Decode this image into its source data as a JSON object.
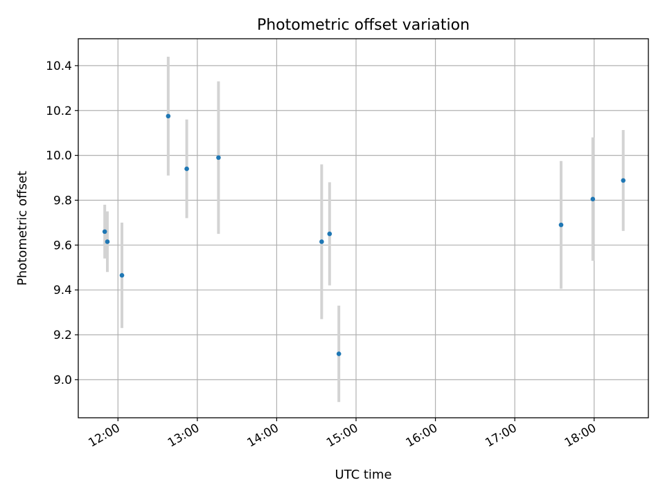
{
  "chart_data": {
    "type": "scatter",
    "title": "Photometric offset variation",
    "xlabel": "UTC time",
    "ylabel": "Photometric offset",
    "x_unit": "UTC hours (HH:MM)",
    "xlim": [
      "11:30",
      "18:41"
    ],
    "ylim": [
      8.83,
      10.52
    ],
    "x_ticks": [
      "12:00",
      "13:00",
      "14:00",
      "15:00",
      "16:00",
      "17:00",
      "18:00"
    ],
    "y_ticks": [
      "9.0",
      "9.2",
      "9.4",
      "9.6",
      "9.8",
      "10.0",
      "10.2",
      "10.4"
    ],
    "grid": true,
    "legend": "none",
    "colors": {
      "point": "#1f77b4",
      "errorbar": "#d3d3d3"
    },
    "series": [
      {
        "points": [
          {
            "x": "11:50",
            "y": 9.66,
            "yerr": 0.12
          },
          {
            "x": "11:52",
            "y": 9.615,
            "yerr": 0.135
          },
          {
            "x": "12:03",
            "y": 9.465,
            "yerr": 0.235
          },
          {
            "x": "12:38",
            "y": 10.175,
            "yerr": 0.265
          },
          {
            "x": "12:52",
            "y": 9.94,
            "yerr": 0.22
          },
          {
            "x": "13:16",
            "y": 9.99,
            "yerr": 0.34
          },
          {
            "x": "14:34",
            "y": 9.615,
            "yerr": 0.345
          },
          {
            "x": "14:40",
            "y": 9.65,
            "yerr": 0.23
          },
          {
            "x": "14:47",
            "y": 9.115,
            "yerr": 0.215
          },
          {
            "x": "17:35",
            "y": 9.69,
            "yerr": 0.285
          },
          {
            "x": "17:59",
            "y": 9.805,
            "yerr": 0.275
          },
          {
            "x": "18:22",
            "y": 9.888,
            "yerr": 0.225
          }
        ]
      }
    ]
  }
}
